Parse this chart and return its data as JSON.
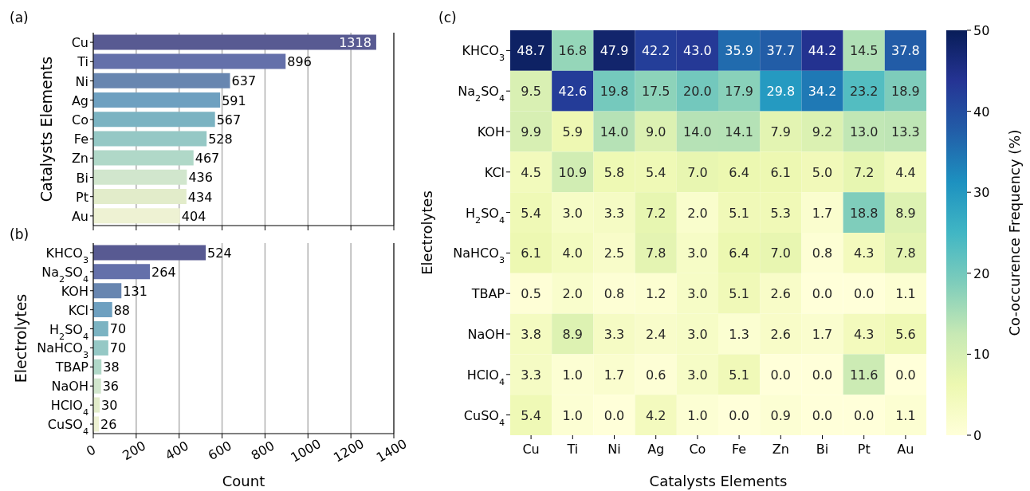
{
  "chart_data": [
    {
      "type": "bar",
      "orientation": "horizontal",
      "title": "(a)",
      "ylabel": "Catalysts Elements",
      "categories": [
        "Cu",
        "Ti",
        "Ni",
        "Ag",
        "Co",
        "Fe",
        "Zn",
        "Bi",
        "Pt",
        "Au"
      ],
      "values": [
        1318,
        896,
        637,
        591,
        567,
        528,
        467,
        436,
        434,
        404
      ],
      "colors": [
        "#585a92",
        "#6470aa",
        "#6886b0",
        "#6ea0c0",
        "#7bb3c2",
        "#95c8c5",
        "#b0d8c8",
        "#d1e6cd",
        "#e2ecca",
        "#eef2d3"
      ],
      "xlim": [
        0,
        1400
      ],
      "xticks": [
        0,
        200,
        400,
        600,
        800,
        1000,
        1200,
        1400
      ],
      "grid": "x",
      "data_labels": true,
      "tick_labels": "y"
    },
    {
      "type": "bar",
      "orientation": "horizontal",
      "title": "(b)",
      "xlabel": "Count",
      "ylabel": "Electrolytes",
      "categories": [
        "KHCO$_{3}$",
        "Na$_{2}$SO$_{4}$",
        "KOH",
        "KCl",
        "H$_{2}$SO$_{4}$",
        "NaHCO$_{3}$",
        "TBAP",
        "NaOH",
        "HClO$_{4}$",
        "CuSO$_{4}$"
      ],
      "values": [
        524,
        264,
        131,
        88,
        70,
        70,
        38,
        36,
        30,
        26
      ],
      "colors": [
        "#585a92",
        "#6470aa",
        "#6886b0",
        "#6ea0c0",
        "#7bb3c2",
        "#95c8c5",
        "#b0d8c8",
        "#d1e6cd",
        "#e2ecca",
        "#eef2d3"
      ],
      "xlim": [
        0,
        1400
      ],
      "xticks": [
        0,
        200,
        400,
        600,
        800,
        1000,
        1200,
        1400
      ],
      "grid": "x",
      "data_labels": true
    },
    {
      "type": "heatmap",
      "title": "(c)",
      "xlabel": "Catalysts Elements",
      "ylabel": "Electrolytes",
      "clabel": "Co-occurence Frequency (%)",
      "categories": [
        "Cu",
        "Ti",
        "Ni",
        "Ag",
        "Co",
        "Fe",
        "Zn",
        "Bi",
        "Pt",
        "Au"
      ],
      "y_categories": [
        "KHCO$_{3}$",
        "Na$_{2}$SO$_{4}$",
        "KOH",
        "KCl",
        "H$_{2}$SO$_{4}$",
        "NaHCO$_{3}$",
        "TBAP",
        "NaOH",
        "HClO$_{4}$",
        "CuSO$_{4}$"
      ],
      "cells": [
        [
          48.7,
          16.8,
          47.9,
          42.2,
          43.0,
          35.9,
          37.7,
          44.2,
          14.5,
          37.8
        ],
        [
          9.5,
          42.6,
          19.8,
          17.5,
          20.0,
          17.9,
          29.8,
          34.2,
          23.2,
          18.9
        ],
        [
          9.9,
          5.9,
          14.0,
          9.0,
          14.0,
          14.1,
          7.9,
          9.2,
          13.0,
          13.3
        ],
        [
          4.5,
          10.9,
          5.8,
          5.4,
          7.0,
          6.4,
          6.1,
          5.0,
          7.2,
          4.4
        ],
        [
          5.4,
          3.0,
          3.3,
          7.2,
          2.0,
          5.1,
          5.3,
          1.7,
          18.8,
          8.9
        ],
        [
          6.1,
          4.0,
          2.5,
          7.8,
          3.0,
          6.4,
          7.0,
          0.8,
          4.3,
          7.8
        ],
        [
          0.5,
          2.0,
          0.8,
          1.2,
          3.0,
          5.1,
          2.6,
          0.0,
          0.0,
          1.1
        ],
        [
          3.8,
          8.9,
          3.3,
          2.4,
          3.0,
          1.3,
          2.6,
          1.7,
          4.3,
          5.6
        ],
        [
          3.3,
          1.0,
          1.7,
          0.6,
          3.0,
          5.1,
          0.0,
          0.0,
          11.6,
          0.0
        ],
        [
          5.4,
          1.0,
          0.0,
          4.2,
          1.0,
          0.0,
          0.9,
          0.0,
          0.0,
          1.1
        ]
      ],
      "cell_labels": [
        [
          "48.7",
          "16.8",
          "47.9",
          "42.2",
          "43.0",
          "35.9",
          "37.7",
          "44.2",
          "14.5",
          "37.8"
        ],
        [
          "9.5",
          "42.6",
          "19.8",
          "17.5",
          "20.0",
          "17.9",
          "29.8",
          "34.2",
          "23.2",
          "18.9"
        ],
        [
          "9.9",
          "5.9",
          "14.0",
          "9.0",
          "14.0",
          "14.1",
          "7.9",
          "9.2",
          "13.0",
          "13.3"
        ],
        [
          "4.5",
          "10.9",
          "5.8",
          "5.4",
          "7.0",
          "6.4",
          "6.1",
          "5.0",
          "7.2",
          "4.4"
        ],
        [
          "5.4",
          "3.0",
          "3.3",
          "7.2",
          "2.0",
          "5.1",
          "5.3",
          "1.7",
          "18.8",
          "8.9"
        ],
        [
          "6.1",
          "4.0",
          "2.5",
          "7.8",
          "3.0",
          "6.4",
          "7.0",
          "0.8",
          "4.3",
          "7.8"
        ],
        [
          "0.5",
          "2.0",
          "0.8",
          "1.2",
          "3.0",
          "5.1",
          "2.6",
          "0.0",
          "0.0",
          "1.1"
        ],
        [
          "3.8",
          "8.9",
          "3.3",
          "2.4",
          "3.0",
          "1.3",
          "2.6",
          "1.7",
          "4.3",
          "5.6"
        ],
        [
          "3.3",
          "1.0",
          "1.7",
          "0.6",
          "3.0",
          "5.1",
          "0.0",
          "0.0",
          "11.6",
          "0.0"
        ],
        [
          "5.4",
          "1.0",
          "0.0",
          "4.2",
          "1.0",
          "0.0",
          "0.9",
          "0.0",
          "0.0",
          "1.1"
        ]
      ],
      "clim": [
        0,
        50
      ],
      "cticks": [
        0,
        10,
        20,
        30,
        40,
        50
      ]
    }
  ]
}
